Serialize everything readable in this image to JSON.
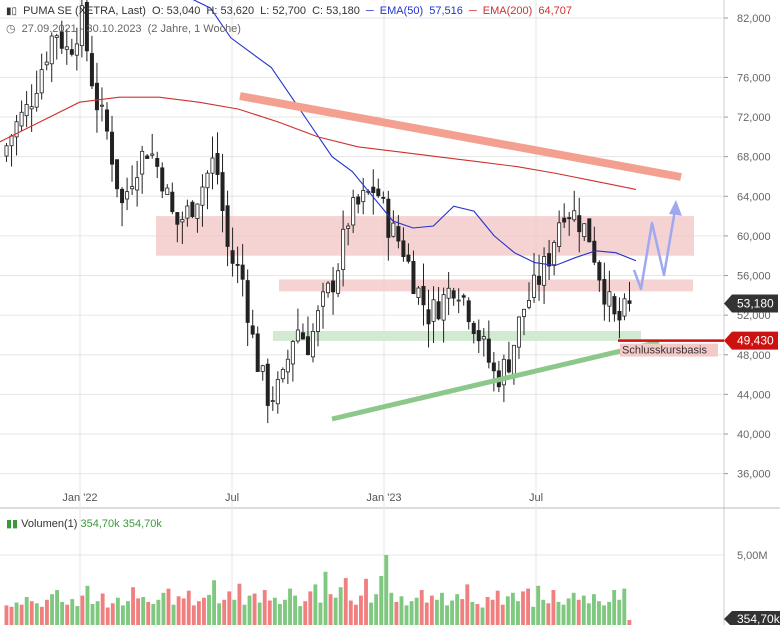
{
  "header": {
    "icon": "candlestick-icon",
    "title": "PUMA SE (XETRA, Last)",
    "open": "O: 53,040",
    "high": "H: 53,620",
    "low": "L: 52,700",
    "close": "C: 53,180",
    "ema50_label": "EMA(50)",
    "ema50_value": "57,516",
    "ema200_label": "EMA(200)",
    "ema200_value": "64,707",
    "clock_icon": "clock-icon",
    "range": "27.09.2021 - 30.10.2023",
    "period": "(2 Jahre, 1 Woche)"
  },
  "colors": {
    "up": "#7fc87f",
    "down": "#f08080",
    "candle_line": "#222222",
    "ema50": "#2233cc",
    "ema200": "#d03030",
    "resistance_trend": "#f4a090",
    "support_trend": "#8cc88c",
    "zone_red": "#f2c4c4",
    "zone_green": "#cde8cd",
    "badge_dark": "#333333",
    "badge_red": "#cc1111",
    "scenario_arrow": "#a0a8f0"
  },
  "annotations": {
    "last_price": "53,180",
    "basis_price": "49,430",
    "basis_label": "Schlusskursbasis"
  },
  "volume": {
    "label": "Volumen(1)",
    "value1": "354,70k",
    "value2": "354,70k",
    "axis_label": "5,00M",
    "badge": "354,70k"
  },
  "chart_data": {
    "type": "candlestick",
    "x_labels": [
      "Jan '22",
      "Jul",
      "Jan '23",
      "Jul"
    ],
    "y_ticks": [
      "82,000",
      "76,000",
      "72,000",
      "68,000",
      "64,000",
      "60,000",
      "56,000",
      "52,000",
      "48,000",
      "44,000",
      "40,000",
      "36,000"
    ],
    "y_tick_values": [
      82,
      76,
      72,
      68,
      64,
      60,
      56,
      52,
      48,
      44,
      40,
      36
    ],
    "ylim": [
      35.5,
      83.5
    ],
    "series": [
      {
        "name": "EMA(50)",
        "values": [
          84.5,
          84.0,
          83.0,
          80.0,
          78.5,
          77.0,
          74.0,
          71.0,
          68.0,
          66.5,
          64.0,
          61.5,
          60.8,
          61.0,
          63.0,
          62.5,
          60.0,
          58.3,
          57.3,
          57.0,
          57.8,
          58.5,
          58.3,
          57.5
        ]
      },
      {
        "name": "EMA(200)",
        "values": [
          69.5,
          71.5,
          73.5,
          74.0,
          74.0,
          73.5,
          72.8,
          71.5,
          70.0,
          69.0,
          68.5,
          68.0,
          67.5,
          67.0,
          66.3,
          65.5,
          64.7
        ]
      }
    ],
    "close_path": [
      68.0,
      71.0,
      73.0,
      77.0,
      81.0,
      78.5,
      82.0,
      74.0,
      70.0,
      63.0,
      67.0,
      69.0,
      66.0,
      61.0,
      62.5,
      65.0,
      68.0,
      58.0,
      56.0,
      48.0,
      43.5,
      45.0,
      51.0,
      49.0,
      53.0,
      56.0,
      62.0,
      63.5,
      65.0,
      61.0,
      59.0,
      55.0,
      52.0,
      53.5,
      55.5,
      52.5,
      49.0,
      45.5,
      47.5,
      52.5,
      55.0,
      58.0,
      63.0,
      62.0,
      60.0,
      55.0,
      51.0,
      53.0
    ],
    "volumes_k": [
      1400,
      1300,
      1600,
      1450,
      2000,
      1700,
      1550,
      1300,
      1800,
      2200,
      2500,
      1650,
      1450,
      1850,
      1350,
      2100,
      2800,
      1500,
      1700,
      2250,
      1250,
      1550,
      1950,
      1400,
      1700,
      2700,
      1900,
      2000,
      1650,
      1500,
      1800,
      2300,
      2600,
      1450,
      2050,
      1900,
      2450,
      1400,
      1700,
      1950,
      2150,
      3200,
      1550,
      1800,
      2400,
      1800,
      2950,
      1450,
      2100,
      2250,
      1600,
      2500,
      1750,
      1950,
      1500,
      1800,
      2600,
      2100,
      1350,
      1700,
      2400,
      2900,
      1600,
      3800,
      2200,
      1950,
      2700,
      3350,
      1750,
      1450,
      2100,
      3300,
      1600,
      2200,
      3500,
      5000,
      2300,
      1650,
      2050,
      1400,
      1700,
      1950,
      2500,
      1600,
      2100,
      1800,
      2300,
      1400,
      1750,
      2200,
      1850,
      2900,
      1650,
      1500,
      1250,
      2000,
      1800,
      2450,
      1450,
      2050,
      2300,
      1700,
      2400,
      2600,
      1300,
      2800,
      1800,
      1550,
      2500,
      1650,
      1450,
      1900,
      2300,
      1800,
      2100,
      1550,
      2200,
      1700,
      1400,
      1650,
      2500,
      1800,
      2600,
      354.7
    ]
  }
}
